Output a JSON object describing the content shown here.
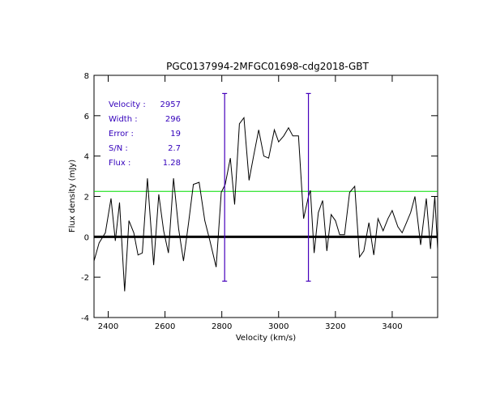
{
  "chart_data": {
    "type": "line",
    "title": "PGC0137994-2MFGC01698-cdg2018-GBT",
    "xlabel": "Velocity (km/s)",
    "ylabel": "Flux density (mJy)",
    "xlim": [
      2350,
      3560
    ],
    "ylim": [
      -4,
      8
    ],
    "x_ticks": [
      2400,
      2600,
      2800,
      3000,
      3200,
      3400
    ],
    "y_ticks": [
      -4,
      -2,
      0,
      2,
      4,
      6,
      8
    ],
    "series": [
      {
        "name": "spectrum",
        "color": "#000000",
        "x": [
          2350,
          2368,
          2390,
          2410,
          2425,
          2440,
          2458,
          2473,
          2490,
          2505,
          2520,
          2538,
          2560,
          2578,
          2595,
          2612,
          2630,
          2648,
          2665,
          2683,
          2700,
          2720,
          2740,
          2758,
          2780,
          2798,
          2812,
          2830,
          2845,
          2862,
          2878,
          2896,
          2912,
          2930,
          2948,
          2965,
          2985,
          3000,
          3018,
          3035,
          3050,
          3070,
          3088,
          3105,
          3112,
          3125,
          3140,
          3155,
          3170,
          3185,
          3200,
          3215,
          3232,
          3250,
          3268,
          3285,
          3300,
          3318,
          3335,
          3350,
          3368,
          3385,
          3400,
          3420,
          3435,
          3450,
          3465,
          3480,
          3500,
          3520,
          3535,
          3550,
          3560
        ],
        "values": [
          -1.2,
          -0.3,
          0.2,
          1.9,
          -0.2,
          1.7,
          -2.7,
          0.8,
          0.2,
          -0.9,
          -0.8,
          2.9,
          -1.4,
          2.1,
          0.3,
          -0.8,
          2.9,
          0.4,
          -1.2,
          0.7,
          2.6,
          2.7,
          0.8,
          -0.2,
          -1.5,
          2.2,
          2.6,
          3.9,
          1.6,
          5.6,
          5.9,
          2.8,
          4.0,
          5.3,
          4.0,
          3.9,
          5.3,
          4.7,
          5.0,
          5.4,
          5.0,
          5.0,
          0.9,
          2.0,
          2.3,
          -0.8,
          1.2,
          1.8,
          -0.7,
          1.1,
          0.8,
          0.1,
          0.1,
          2.2,
          2.5,
          -1.0,
          -0.7,
          0.7,
          -0.9,
          0.9,
          0.3,
          0.9,
          1.3,
          0.5,
          0.2,
          0.7,
          1.2,
          2.0,
          -0.4,
          1.9,
          -0.6,
          2.0,
          -0.6
        ]
      }
    ],
    "zero_line": {
      "y": 0,
      "color": "#000000"
    },
    "threshold_line": {
      "y": 2.25,
      "color": "#00dd00"
    },
    "markers": [
      {
        "x": 2810,
        "y_range": [
          -2.2,
          7.1
        ],
        "color": "#4400bb"
      },
      {
        "x": 3105,
        "y_range": [
          -2.2,
          7.1
        ],
        "color": "#4400bb"
      }
    ],
    "annotations": [
      {
        "label": "Velocity :",
        "value": "2957"
      },
      {
        "label": "Width :",
        "value": "296"
      },
      {
        "label": "Error :",
        "value": "19"
      },
      {
        "label": "S/N :",
        "value": "2.7"
      },
      {
        "label": "Flux :",
        "value": "1.28"
      }
    ],
    "annotation_color": "#3300bb"
  }
}
